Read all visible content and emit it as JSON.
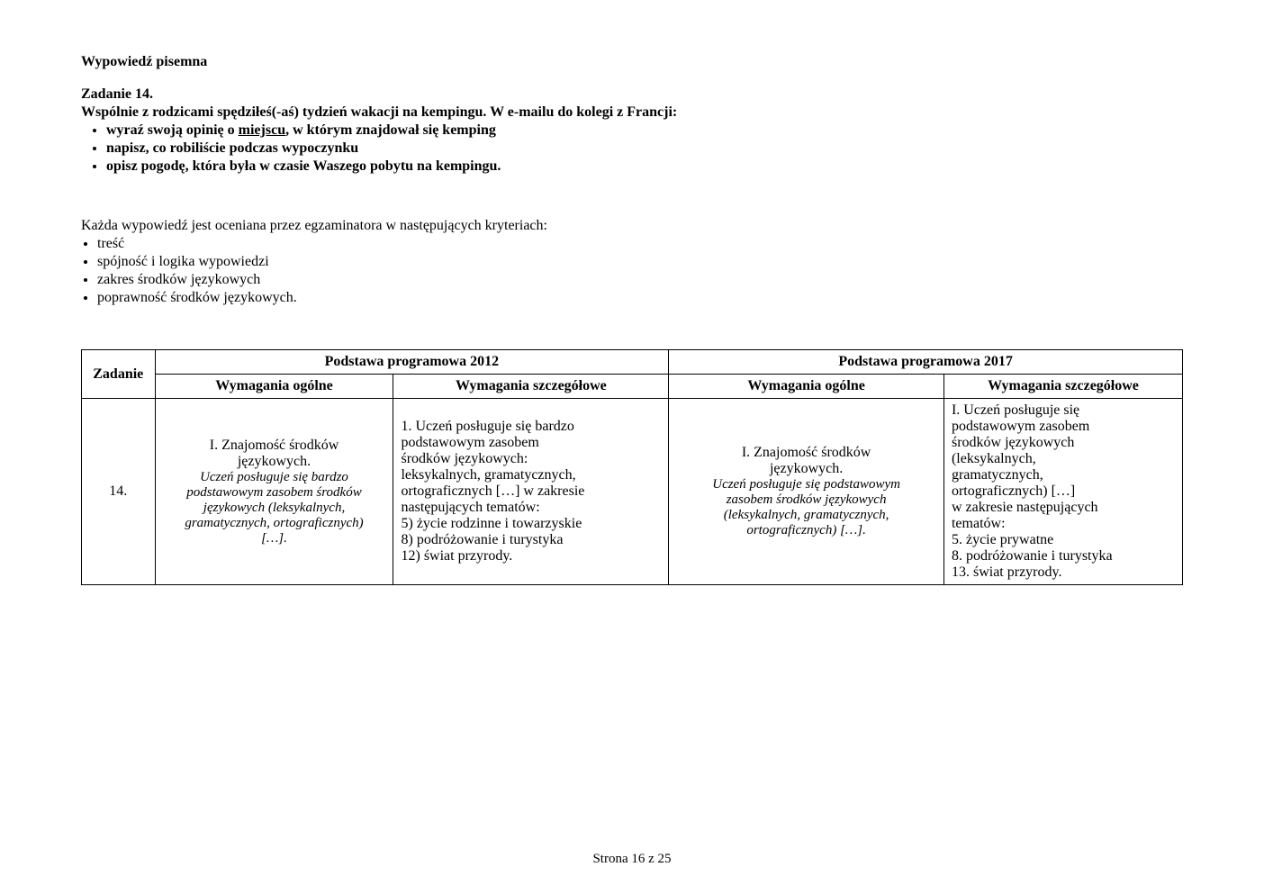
{
  "section_title": "Wypowiedź pisemna",
  "task_label": "Zadanie 14.",
  "task_intro": "Wspólnie z rodzicami spędziłeś(-aś) tydzień wakacji na kempingu. W e-mailu do kolegi z Francji:",
  "bullets": [
    {
      "pre": "wyraź swoją opinię o ",
      "underline": "miejscu",
      "post": ", w którym znajdował się kemping"
    },
    {
      "pre": "napisz, co robiliście podczas wypoczynku",
      "underline": "",
      "post": ""
    },
    {
      "pre": "opisz pogodę, która była w czasie Waszego pobytu na kempingu.",
      "underline": "",
      "post": ""
    }
  ],
  "criteria_intro": "Każda wypowiedź jest oceniana przez egzaminatora w następujących kryteriach:",
  "criteria": [
    "treść",
    "spójność i logika wypowiedzi",
    "zakres środków językowych",
    "poprawność środków językowych."
  ],
  "table": {
    "headers": {
      "zadanie": "Zadanie",
      "pp2012": "Podstawa programowa 2012",
      "pp2017": "Podstawa programowa 2017",
      "wym_ogolne": "Wymagania ogólne",
      "wym_szczegolowe": "Wymagania szczegółowe"
    },
    "row": {
      "zadanie": "14.",
      "p2012_ogolne_title": "I. Znajomość środków\njęzykowych.",
      "p2012_ogolne_italic": "Uczeń posługuje się bardzo\npodstawowym zasobem środków\njęzykowych (leksykalnych,\ngramatycznych, ortograficznych)\n[…].",
      "p2012_szczegolowe": "1. Uczeń posługuje się bardzo\npodstawowym zasobem\nśrodków językowych:\nleksykalnych, gramatycznych,\nortograficznych […] w zakresie\nnastępujących tematów:\n5) życie rodzinne i towarzyskie\n8) podróżowanie i turystyka\n12) świat przyrody.",
      "p2017_ogolne_title": "I. Znajomość środków\njęzykowych.",
      "p2017_ogolne_italic": "Uczeń posługuje się podstawowym\nzasobem środków językowych\n(leksykalnych, gramatycznych,\nortograficznych) […].",
      "p2017_szczegolowe": "I. Uczeń posługuje się\npodstawowym zasobem\nśrodków językowych\n(leksykalnych,\ngramatycznych,\nortograficznych) […]\nw zakresie następujących\ntematów:\n5. życie prywatne\n8. podróżowanie i turystyka\n13. świat przyrody."
    }
  },
  "page_number": "Strona 16 z 25",
  "colors": {
    "text": "#000000",
    "background": "#ffffff",
    "border": "#000000"
  }
}
